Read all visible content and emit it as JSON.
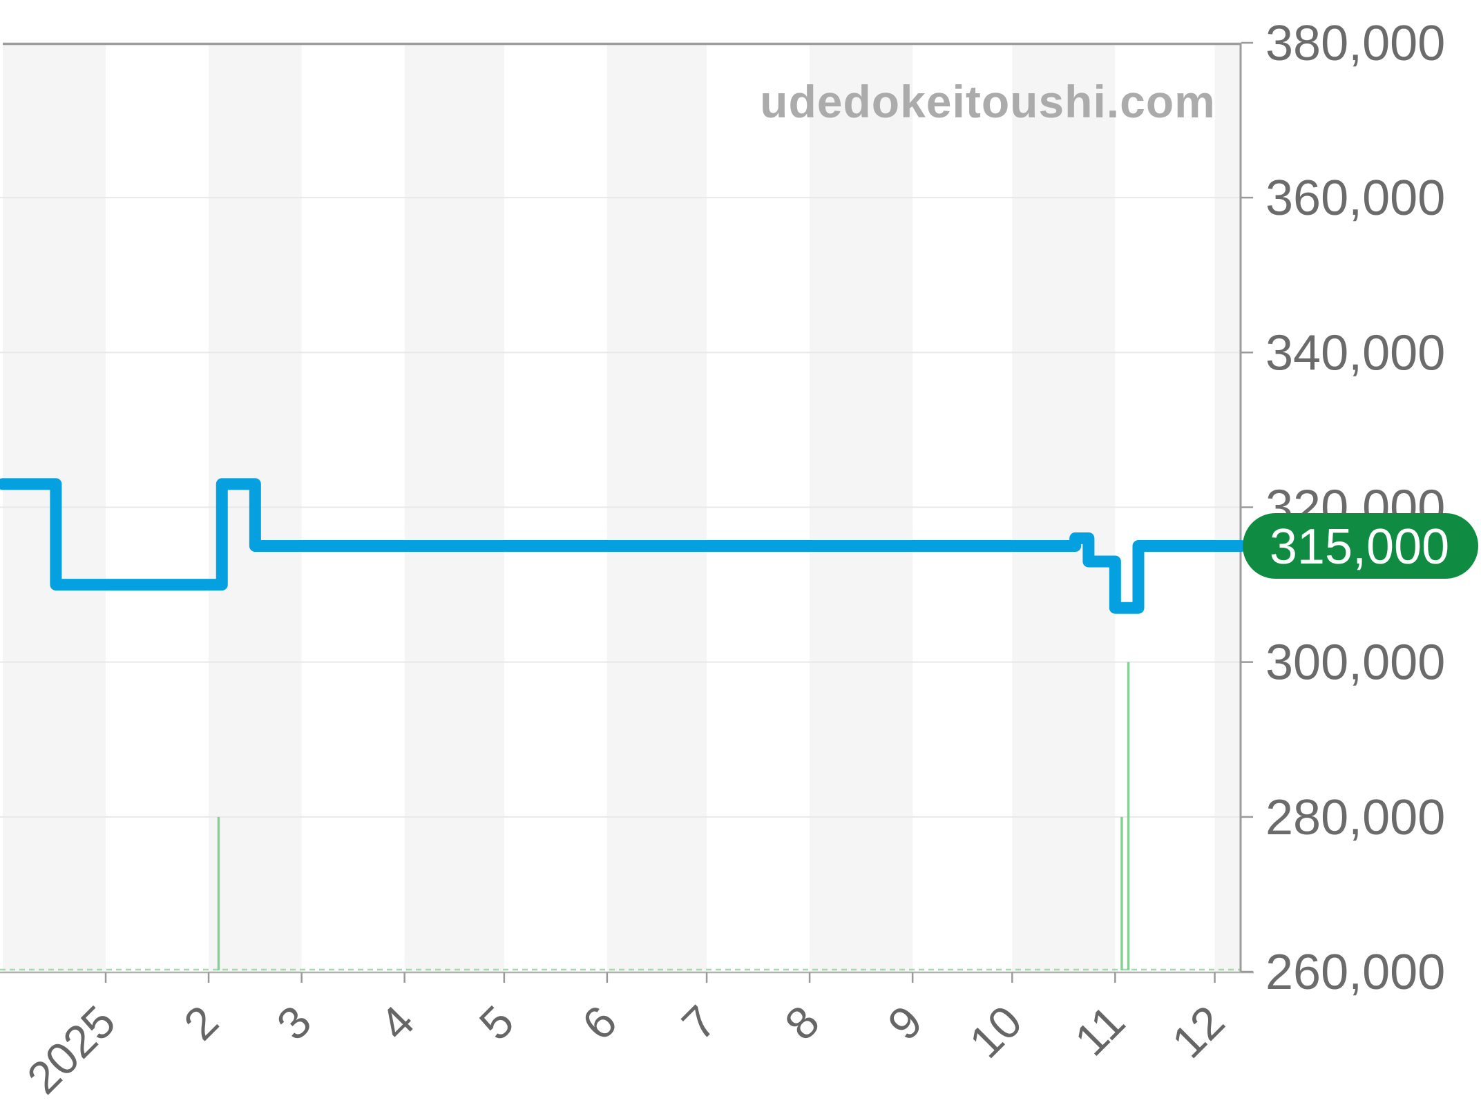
{
  "watermark": {
    "text": "udedokeitoushi.com",
    "color": "#ABABAB"
  },
  "current_price_badge": {
    "text": "315,000",
    "value": 315000,
    "bg_color": "#0F8C42",
    "text_color": "#FFFFFF"
  },
  "chart_data": {
    "type": "line",
    "subtype": "step",
    "title": "",
    "xlabel": "",
    "ylabel": "",
    "x_axis": {
      "tick_labels": [
        "2025",
        "2",
        "3",
        "4",
        "5",
        "6",
        "7",
        "8",
        "9",
        "10",
        "11",
        "12"
      ],
      "tick_day_offsets": [
        31,
        62,
        90,
        121,
        151,
        182,
        212,
        243,
        274,
        304,
        335,
        365
      ],
      "domain_day_offsets": [
        0,
        373
      ],
      "label_rotation_deg": -45
    },
    "y_axis": {
      "side": "right",
      "min": 260000,
      "max": 380000,
      "step": 20000,
      "tick_values": [
        380000,
        360000,
        340000,
        320000,
        300000,
        280000,
        260000
      ],
      "tick_labels": [
        "380,000",
        "360,000",
        "340,000",
        "320,000",
        "300,000",
        "280,000",
        "260,000"
      ]
    },
    "series": [
      {
        "name": "price",
        "type": "step-line",
        "color": "#05A0DF",
        "stroke_width": 17,
        "points_day_value": [
          [
            0,
            323000
          ],
          [
            16,
            310000
          ],
          [
            66,
            323000
          ],
          [
            76,
            315000
          ],
          [
            323,
            316000
          ],
          [
            327,
            313000
          ],
          [
            335,
            307000
          ],
          [
            342,
            315000
          ],
          [
            373,
            315000
          ]
        ]
      },
      {
        "name": "listing-volume",
        "type": "bar",
        "color": "#87CF94",
        "bar_width": 3.5,
        "baseline_value": 260000,
        "points_day_value": [
          [
            65,
            280000
          ],
          [
            337,
            280000
          ],
          [
            339,
            300000
          ]
        ]
      }
    ],
    "bands": {
      "color": "#F5F5F5",
      "day_ranges": [
        [
          0,
          31
        ],
        [
          62,
          90
        ],
        [
          121,
          151
        ],
        [
          182,
          212
        ],
        [
          243,
          274
        ],
        [
          304,
          335
        ],
        [
          365,
          373
        ]
      ]
    },
    "grid": {
      "color": "#E8E8E8",
      "baseline_dashed_color": "#A5D8AB"
    },
    "axis_colors": {
      "border": "#9C9C9C",
      "bottom": "#B0B0B0",
      "tick": "#999999",
      "y_label": "#6B6B6B",
      "x_label": "#666666"
    },
    "current_value": 315000,
    "legend": null,
    "grid_on": true
  }
}
